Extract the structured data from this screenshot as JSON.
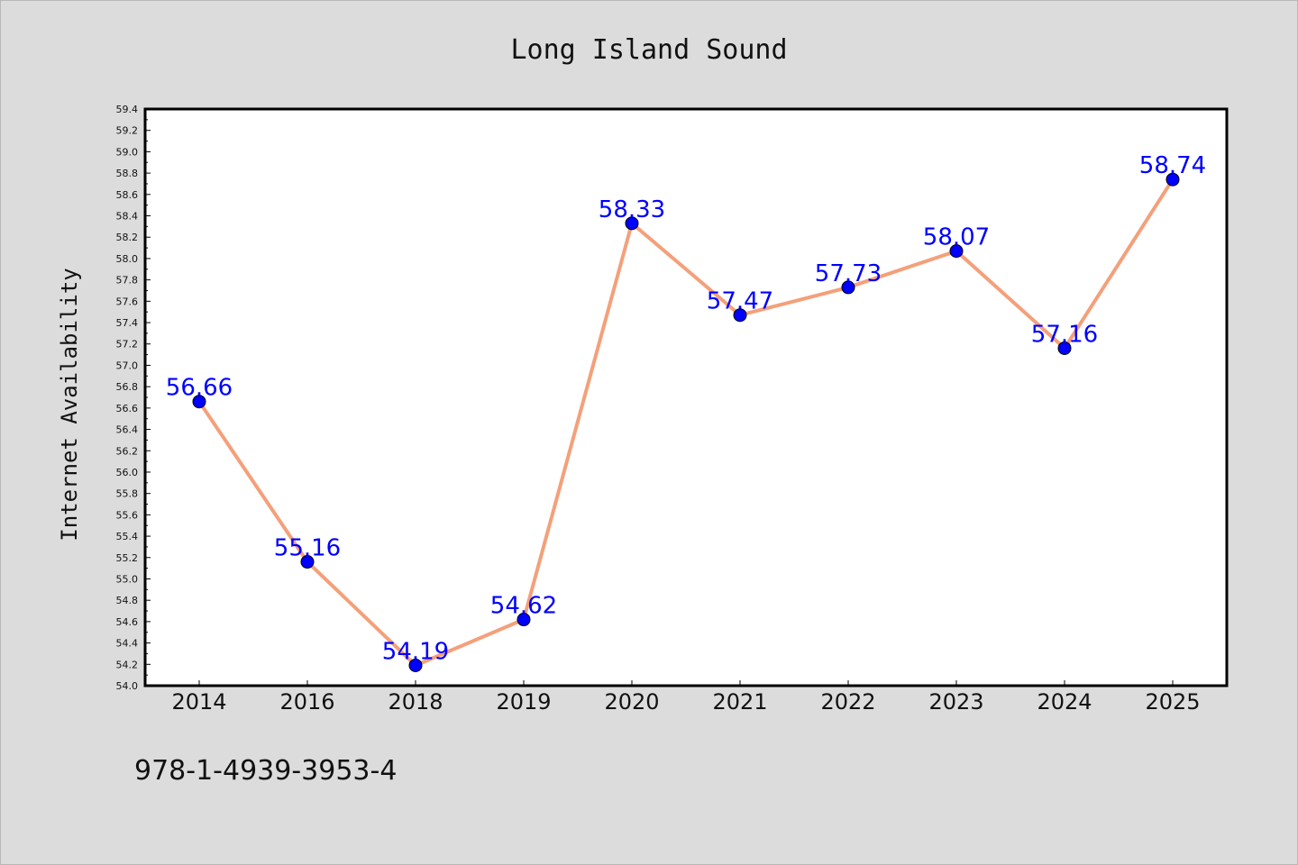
{
  "chart_data": {
    "type": "line",
    "title": "Long Island Sound",
    "xlabel": "",
    "ylabel": "Internet Availability",
    "categories": [
      "2014",
      "2016",
      "2018",
      "2019",
      "2020",
      "2021",
      "2022",
      "2023",
      "2024",
      "2025"
    ],
    "series": [
      {
        "values": [
          56.66,
          55.16,
          54.19,
          54.62,
          58.33,
          57.47,
          57.73,
          58.07,
          57.16,
          58.74
        ],
        "line_color": "#f4a07a",
        "marker_color": "#0000ff"
      }
    ],
    "data_labels": [
      "56.66",
      "55.16",
      "54.19",
      "54.62",
      "58.33",
      "57.47",
      "57.73",
      "58.07",
      "57.16",
      "58.74"
    ],
    "ylim": [
      54.0,
      59.4
    ],
    "yticks": [
      "54.0",
      "54.2",
      "54.4",
      "54.6",
      "54.8",
      "55.0",
      "55.2",
      "55.4",
      "55.6",
      "55.8",
      "56.0",
      "56.2",
      "56.4",
      "56.6",
      "56.8",
      "57.0",
      "57.2",
      "57.4",
      "57.6",
      "57.8",
      "58.0",
      "58.2",
      "58.4",
      "58.6",
      "58.8",
      "59.0",
      "59.2",
      "59.4"
    ],
    "grid": false,
    "legend": "none"
  },
  "footer": {
    "code": "978-1-4939-3953-4"
  },
  "colors": {
    "background": "#dcdcdc",
    "plot_background": "#ffffff",
    "line": "#f4a07a",
    "marker": "#0000ff",
    "data_label": "#0000ff"
  }
}
